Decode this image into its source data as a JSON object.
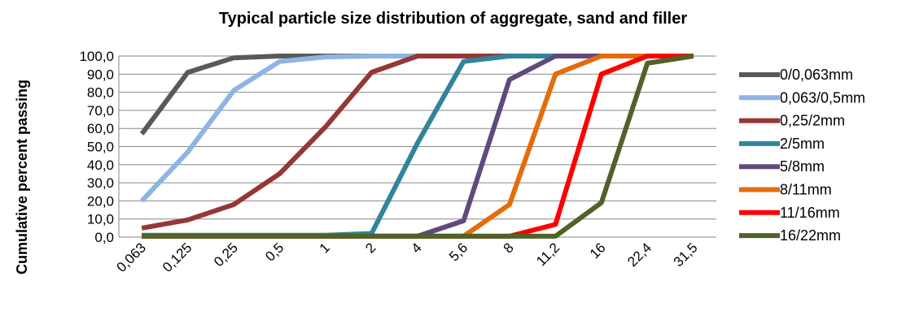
{
  "chart_data": {
    "type": "line",
    "title": "Typical particle size distribution of aggregate, sand and filler",
    "xlabel": "",
    "ylabel": "Cumulative percent passing",
    "categories": [
      "0,063",
      "0,125",
      "0,25",
      "0,5",
      "1",
      "2",
      "4",
      "5,6",
      "8",
      "11,2",
      "16",
      "22,4",
      "31,5"
    ],
    "y_tick_labels": [
      "0,0",
      "10,0",
      "20,0",
      "30,0",
      "40,0",
      "50,0",
      "60,0",
      "70,0",
      "80,0",
      "90,0",
      "100,0"
    ],
    "ylim": [
      0,
      100
    ],
    "grid": true,
    "legend_position": "right",
    "series": [
      {
        "name": "0/0,063mm",
        "color": "#595959",
        "values": [
          57,
          91,
          99,
          100,
          100,
          100,
          100,
          100,
          100,
          100,
          100,
          100,
          100
        ]
      },
      {
        "name": "0,063/0,5mm",
        "color": "#8EB4E3",
        "values": [
          20,
          47,
          81,
          97,
          99.5,
          100,
          100,
          100,
          100,
          100,
          100,
          100,
          100
        ]
      },
      {
        "name": "0,25/2mm",
        "color": "#953735",
        "values": [
          5,
          9.5,
          18,
          35,
          61,
          91,
          100,
          100,
          100,
          100,
          100,
          100,
          100
        ]
      },
      {
        "name": "2/5mm",
        "color": "#31849B",
        "values": [
          1,
          1,
          1,
          1,
          1,
          2,
          52,
          97,
          100,
          100,
          100,
          100,
          100
        ]
      },
      {
        "name": "5/8mm",
        "color": "#604A7B",
        "values": [
          0.5,
          0.5,
          0.5,
          0.5,
          0.5,
          0.5,
          0.5,
          9,
          87,
          100,
          100,
          100,
          100
        ]
      },
      {
        "name": "8/11mm",
        "color": "#E46C0A",
        "values": [
          0.5,
          0.5,
          0.5,
          0.5,
          0.5,
          0.5,
          0.5,
          0.5,
          18,
          90,
          100,
          100,
          100
        ]
      },
      {
        "name": "11/16mm",
        "color": "#FF0000",
        "values": [
          0.5,
          0.5,
          0.5,
          0.5,
          0.5,
          0.5,
          0.5,
          0.5,
          0.5,
          7,
          90,
          100,
          100
        ]
      },
      {
        "name": "16/22mm",
        "color": "#4F6228",
        "values": [
          0.5,
          0.5,
          0.5,
          0.5,
          0.5,
          0.5,
          0.5,
          0.5,
          0.5,
          0.5,
          19,
          96,
          100
        ]
      }
    ]
  }
}
